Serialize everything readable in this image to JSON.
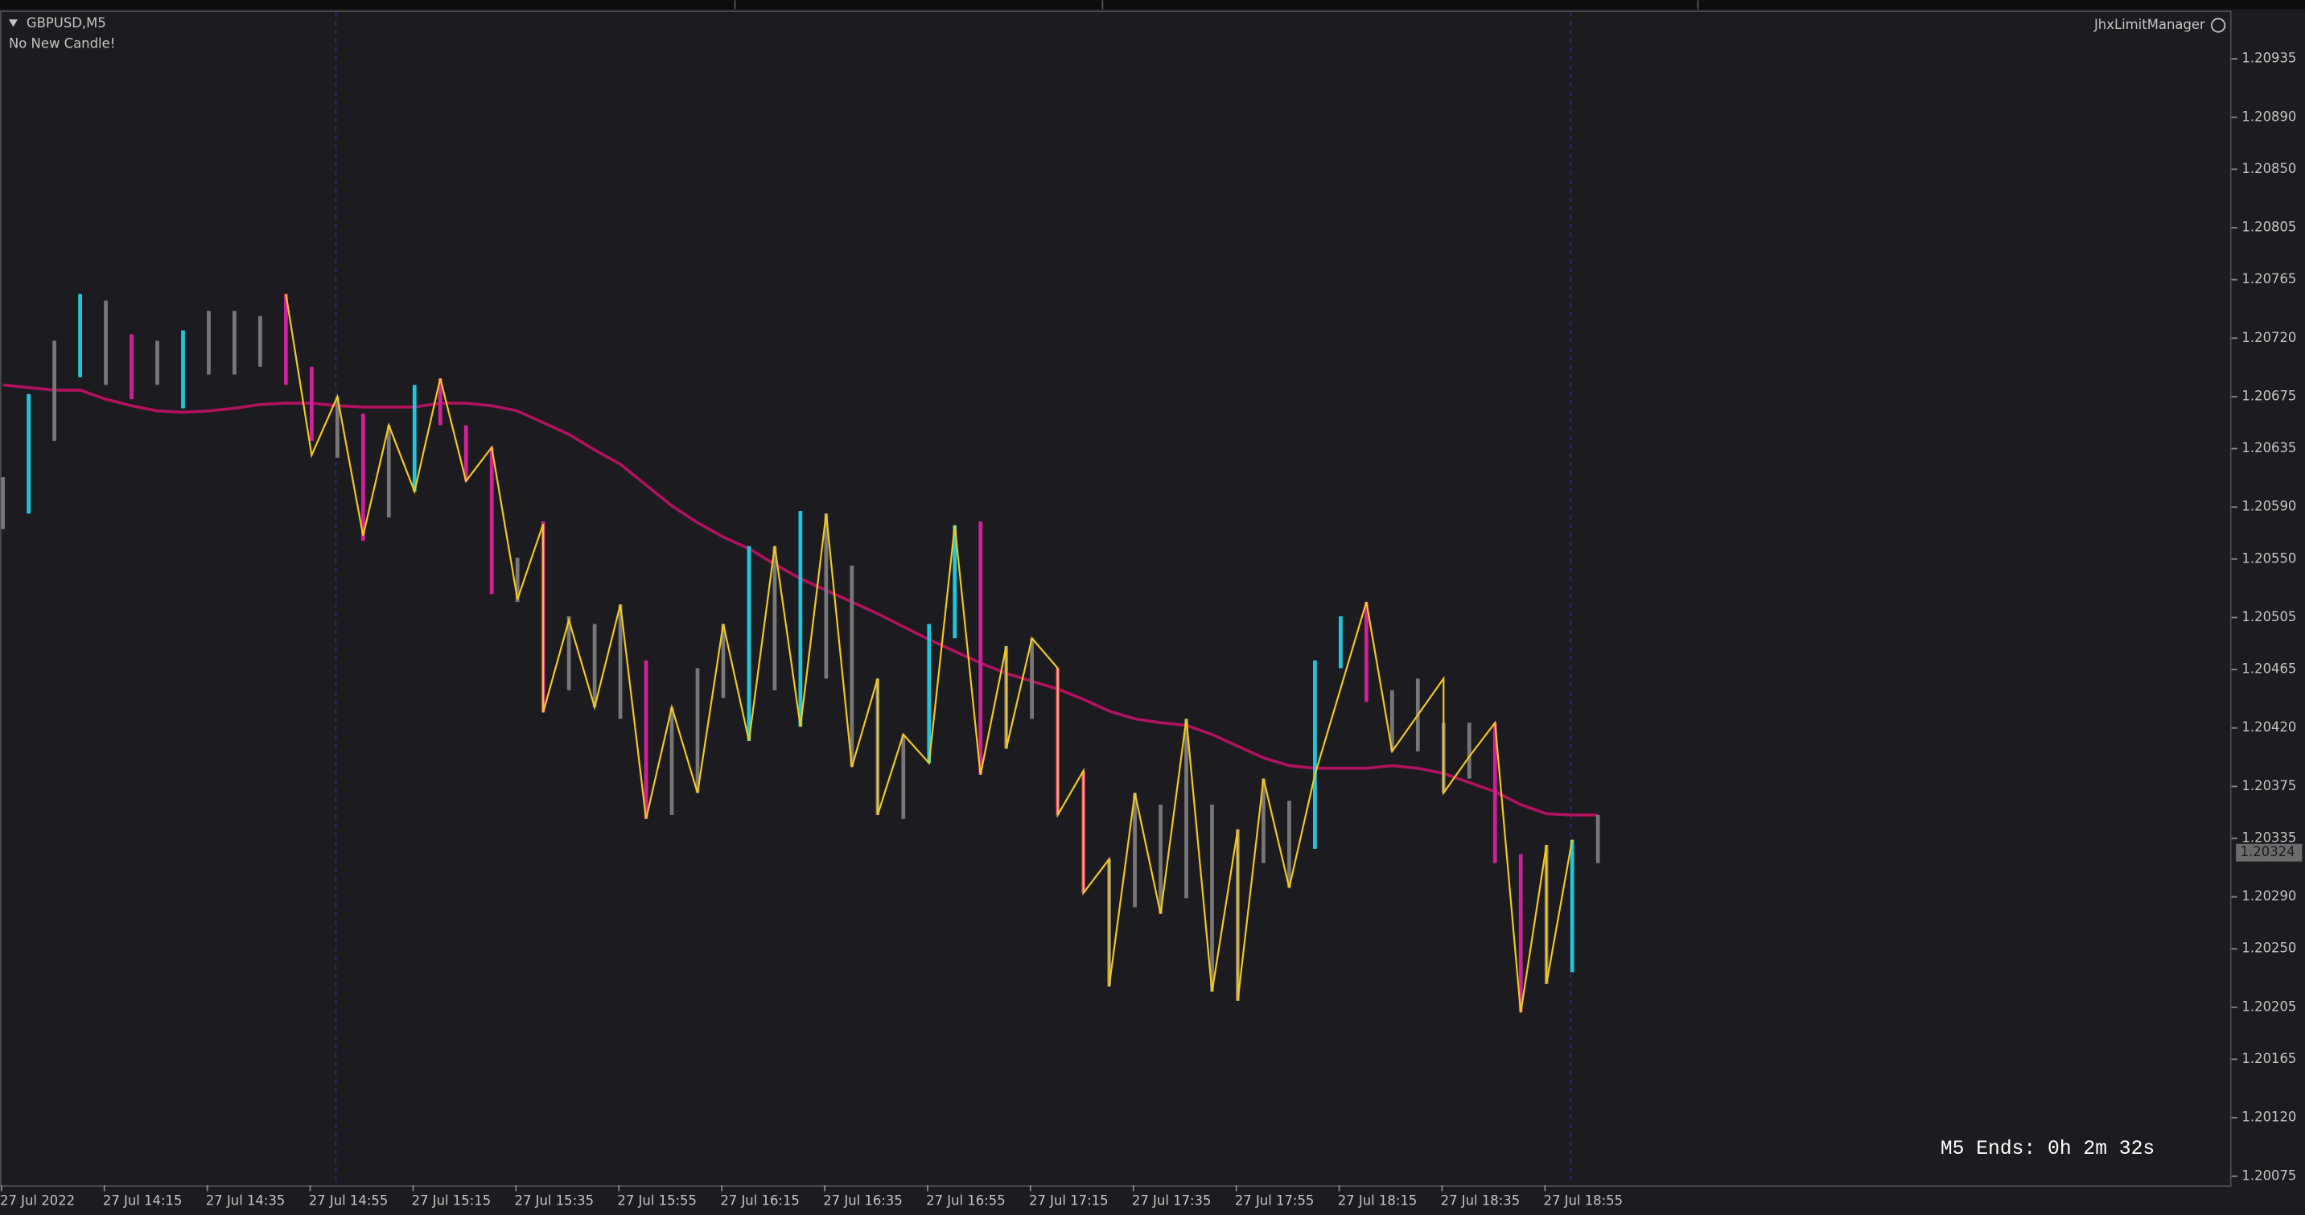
{
  "chart_data": {
    "type": "ohlc",
    "title": "GBPUSD,M5",
    "subtitle": "No New Candle!",
    "annotations": [
      "JhxLimitManager",
      "M5 Ends: 0h 2m 32s"
    ],
    "background": "#1c1b20",
    "grid": false,
    "categories": [
      "27 Jul 2022",
      null,
      null,
      null,
      "27 Jul 14:15",
      null,
      null,
      null,
      "27 Jul 14:35",
      null,
      null,
      null,
      "27 Jul 14:55",
      null,
      null,
      null,
      "27 Jul 15:15",
      null,
      null,
      null,
      "27 Jul 15:35",
      null,
      null,
      null,
      "27 Jul 15:55",
      null,
      null,
      null,
      "27 Jul 16:15",
      null,
      null,
      null,
      "27 Jul 16:35",
      null,
      null,
      null,
      "27 Jul 16:55",
      null,
      null,
      null,
      "27 Jul 17:15",
      null,
      null,
      null,
      "27 Jul 17:35",
      null,
      null,
      null,
      "27 Jul 17:55",
      null,
      null,
      null,
      "27 Jul 18:15",
      null,
      null,
      null,
      "27 Jul 18:35",
      null,
      null,
      null,
      "27 Jul 18:55",
      null,
      null
    ],
    "high": [
      1.20613,
      1.20677,
      1.20718,
      1.20754,
      1.20749,
      1.20723,
      1.20718,
      1.20726,
      1.20741,
      1.20741,
      1.20737,
      1.20754,
      1.20698,
      1.20675,
      1.20662,
      1.20653,
      1.20684,
      1.20689,
      1.20653,
      1.20636,
      1.20551,
      1.20579,
      1.20506,
      1.205,
      1.20515,
      1.20472,
      1.20436,
      1.20466,
      1.205,
      1.2056,
      1.2056,
      1.20587,
      1.20585,
      1.20545,
      1.20458,
      1.20415,
      1.205,
      1.20576,
      1.20579,
      1.20483,
      1.20489,
      1.20466,
      1.20387,
      1.20319,
      1.2037,
      1.20361,
      1.20427,
      1.20361,
      1.20342,
      1.20381,
      1.20364,
      1.20472,
      1.20506,
      1.20517,
      1.20449,
      1.20458,
      1.20424,
      1.20424,
      1.20424,
      1.20323,
      1.2033,
      1.20334,
      1.20353
    ],
    "low": [
      1.20573,
      1.20585,
      1.20641,
      1.2069,
      1.20684,
      1.20673,
      1.20684,
      1.20666,
      1.20692,
      1.20692,
      1.20698,
      1.20684,
      1.20641,
      1.20628,
      1.20564,
      1.20582,
      1.20602,
      1.20653,
      1.2061,
      1.20523,
      1.20517,
      1.20432,
      1.20449,
      1.20436,
      1.20427,
      1.2035,
      1.20353,
      1.2037,
      1.20443,
      1.2041,
      1.20449,
      1.20421,
      1.20458,
      1.2039,
      1.20353,
      1.2035,
      1.20393,
      1.20489,
      1.20384,
      1.20404,
      1.20427,
      1.20353,
      1.20293,
      1.20221,
      1.20282,
      1.20277,
      1.20289,
      1.20217,
      1.2021,
      1.20316,
      1.20297,
      1.20327,
      1.20466,
      1.2044,
      1.20402,
      1.20402,
      1.2037,
      1.20381,
      1.20316,
      1.20201,
      1.20223,
      1.20232,
      1.20316
    ],
    "bar_colors": [
      "#777777",
      "#1ec8dc",
      "#777777",
      "#1ec8dc",
      "#777777",
      "#d0209a",
      "#777777",
      "#1ec8dc",
      "#777777",
      "#777777",
      "#777777",
      "#d0209a",
      "#d0209a",
      "#777777",
      "#d0209a",
      "#777777",
      "#1ec8dc",
      "#d0209a",
      "#d0209a",
      "#d0209a",
      "#777777",
      "#d0209a",
      "#777777",
      "#777777",
      "#777777",
      "#d0209a",
      "#777777",
      "#777777",
      "#777777",
      "#1ec8dc",
      "#777777",
      "#1ec8dc",
      "#777777",
      "#777777",
      "#777777",
      "#777777",
      "#1ec8dc",
      "#1ec8dc",
      "#d0209a",
      "#777777",
      "#777777",
      "#d0209a",
      "#d0209a",
      "#777777",
      "#777777",
      "#777777",
      "#777777",
      "#777777",
      "#777777",
      "#777777",
      "#777777",
      "#1ec8dc",
      "#1ec8dc",
      "#d0209a",
      "#777777",
      "#777777",
      "#777777",
      "#777777",
      "#d0209a",
      "#d0209a",
      "#777777",
      "#1ec8dc",
      "#777777"
    ],
    "zigzag": {
      "color": "#f2c81e",
      "x": [
        11,
        12,
        13,
        14,
        15,
        16,
        17,
        18,
        19,
        20,
        21,
        21,
        22,
        23,
        24,
        25,
        26,
        27,
        28,
        29,
        30,
        31,
        32,
        33,
        34,
        34,
        35,
        36,
        37,
        38,
        39,
        39,
        40,
        41,
        41,
        42,
        42,
        43,
        43,
        44,
        45,
        46,
        47,
        48,
        48,
        49,
        50,
        51,
        53,
        54,
        56,
        56,
        57,
        58,
        59,
        60,
        60,
        61
      ],
      "values": [
        1.20754,
        1.2063,
        1.20675,
        1.20568,
        1.20653,
        1.20602,
        1.20689,
        1.2061,
        1.20636,
        1.20519,
        1.20577,
        1.20432,
        1.20503,
        1.20436,
        1.20515,
        1.2035,
        1.20436,
        1.2037,
        1.205,
        1.2041,
        1.2056,
        1.20421,
        1.20585,
        1.2039,
        1.20458,
        1.20353,
        1.20415,
        1.20393,
        1.20576,
        1.20384,
        1.20483,
        1.20404,
        1.20489,
        1.20466,
        1.20353,
        1.20387,
        1.20293,
        1.20319,
        1.20221,
        1.2037,
        1.20277,
        1.20427,
        1.20217,
        1.20342,
        1.2021,
        1.20381,
        1.20297,
        1.20384,
        1.20517,
        1.20402,
        1.20458,
        1.2037,
        1.20398,
        1.20424,
        1.20201,
        1.2033,
        1.20223,
        1.20334
      ]
    },
    "ma": {
      "color": "#b0125e",
      "values": [
        1.20684,
        1.20682,
        1.2068,
        1.2068,
        1.20673,
        1.20668,
        1.20664,
        1.20663,
        1.20664,
        1.20666,
        1.20669,
        1.2067,
        1.2067,
        1.20668,
        1.20667,
        1.20667,
        1.20667,
        1.2067,
        1.2067,
        1.20668,
        1.20664,
        1.20655,
        1.20646,
        1.20634,
        1.20623,
        1.20607,
        1.20591,
        1.20578,
        1.20567,
        1.20558,
        1.20546,
        1.20535,
        1.20526,
        1.20517,
        1.20508,
        1.20498,
        1.20488,
        1.20479,
        1.2047,
        1.20462,
        1.20456,
        1.2045,
        1.20442,
        1.20433,
        1.20427,
        1.20424,
        1.20422,
        1.20415,
        1.20406,
        1.20397,
        1.20391,
        1.20389,
        1.20389,
        1.20389,
        1.20391,
        1.20389,
        1.20385,
        1.20378,
        1.20371,
        1.20361,
        1.20354,
        1.20353,
        1.20353
      ]
    },
    "current_price": 1.20324,
    "ylim": [
      1.20068,
      1.20971
    ],
    "yticks": [
      1.20935,
      {
        "value": 1.2089,
        "label": "1.20890"
      },
      {
        "value": 1.2085,
        "label": "1.20850"
      },
      1.20805,
      1.20765,
      {
        "value": 1.2072,
        "label": "1.20720"
      },
      1.20675,
      1.20635,
      {
        "value": 1.2059,
        "label": "1.20590"
      },
      {
        "value": 1.2055,
        "label": "1.20550"
      },
      1.20505,
      1.20465,
      {
        "value": 1.2042,
        "label": "1.20420"
      },
      1.20375,
      1.20335,
      {
        "value": 1.2029,
        "label": "1.20290"
      },
      {
        "value": 1.2025,
        "label": "1.20250"
      },
      1.20205,
      1.20165,
      {
        "value": 1.2012,
        "label": "1.20120"
      },
      1.20075
    ]
  }
}
